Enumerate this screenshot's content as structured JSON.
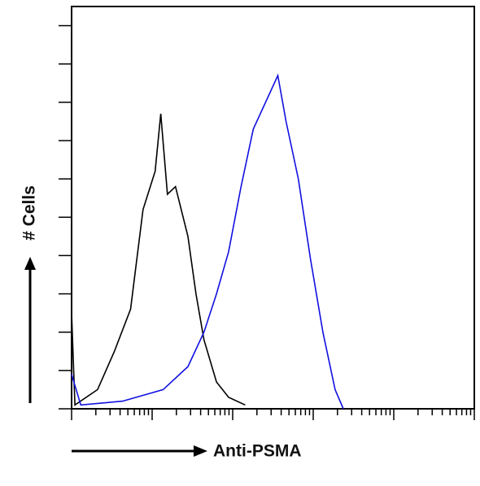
{
  "chart_data": {
    "type": "line",
    "xlabel": "Anti-PSMA",
    "ylabel": "# Cells",
    "xscale": "log",
    "xlim": [
      1,
      100000
    ],
    "xticks": [
      1,
      2,
      3,
      4,
      5,
      6,
      7,
      8,
      9,
      10,
      20,
      30,
      40,
      50,
      60,
      70,
      80,
      90,
      100,
      200,
      300,
      400,
      500,
      600,
      700,
      800,
      900,
      1000,
      2000,
      3000,
      4000,
      5000,
      6000,
      7000,
      8000,
      9000,
      10000,
      20000,
      30000,
      40000,
      50000,
      60000,
      70000,
      80000,
      90000,
      100000
    ],
    "ylim": [
      0,
      105
    ],
    "yticks": [
      0,
      10,
      20,
      30,
      40,
      50,
      60,
      70,
      80,
      90,
      100
    ],
    "series": [
      {
        "color": "#000000",
        "x": [
          1,
          1.1,
          2.1,
          3.4,
          5.4,
          7.7,
          10.9,
          12.8,
          15.5,
          19.5,
          27.8,
          35,
          44,
          63,
          89,
          143
        ],
        "values": [
          25,
          1,
          5,
          15,
          26,
          52,
          62,
          77,
          56,
          58,
          45,
          30,
          18,
          7,
          3,
          1
        ]
      },
      {
        "color": "#1010e0",
        "x": [
          1,
          1.3,
          4.3,
          13.7,
          27.8,
          44,
          63,
          89,
          127,
          180,
          256,
          364,
          460,
          653,
          927,
          1318,
          1871,
          2366
        ],
        "values": [
          9,
          1,
          2,
          5,
          11,
          20,
          30,
          41,
          58,
          73,
          80,
          87,
          75,
          60,
          39,
          20,
          5,
          0
        ]
      }
    ]
  }
}
